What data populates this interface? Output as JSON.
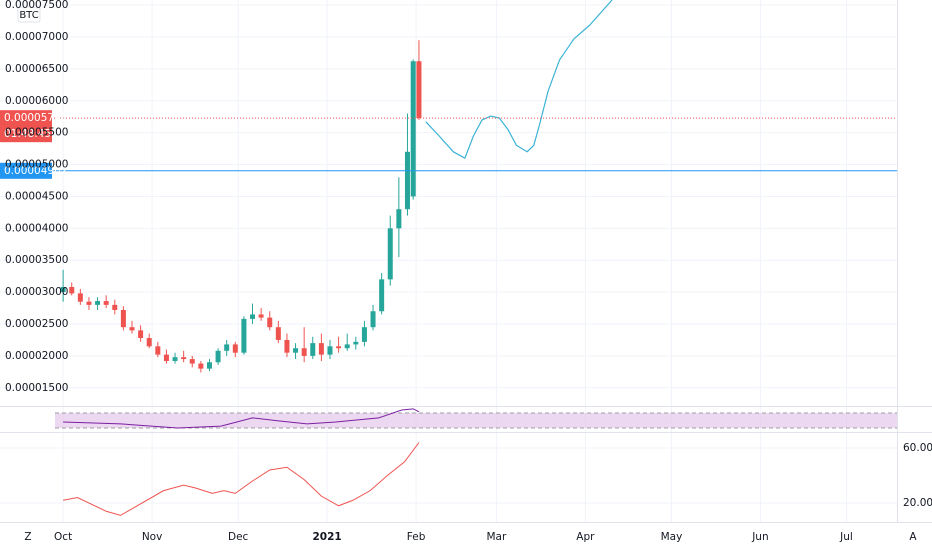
{
  "ui": {
    "symbol": "BTC",
    "left_button": "Z",
    "right_button": "A"
  },
  "chart_data": [
    {
      "type": "candlestick",
      "up_color": "#26a69a",
      "down_color": "#ef5350",
      "x": [
        0,
        3,
        6,
        9,
        12,
        15,
        18,
        21,
        24,
        27,
        30,
        33,
        36,
        39,
        42,
        45,
        48,
        51,
        54,
        57,
        60,
        63,
        66,
        69,
        72,
        75,
        78,
        81,
        84,
        87,
        90,
        93,
        96,
        99,
        102,
        105,
        108,
        111,
        114,
        117,
        120,
        122,
        124
      ],
      "open": [
        3e-05,
        3.08e-05,
        2.98e-05,
        2.85e-05,
        2.8e-05,
        2.86e-05,
        2.8e-05,
        2.72e-05,
        2.45e-05,
        2.4e-05,
        2.28e-05,
        2.15e-05,
        2.02e-05,
        1.92e-05,
        1.98e-05,
        1.95e-05,
        1.88e-05,
        1.8e-05,
        1.9e-05,
        2.08e-05,
        2.18e-05,
        2.05e-05,
        2.58e-05,
        2.65e-05,
        2.6e-05,
        2.45e-05,
        2.25e-05,
        2.05e-05,
        2.12e-05,
        2e-05,
        2.2e-05,
        2.02e-05,
        2.15e-05,
        2.12e-05,
        2.18e-05,
        2.22e-05,
        2.45e-05,
        2.7e-05,
        3.2e-05,
        4e-05,
        4.3e-05,
        4.5e-05,
        6.62e-05
      ],
      "high": [
        3.35e-05,
        3.15e-05,
        3.05e-05,
        2.92e-05,
        2.92e-05,
        2.95e-05,
        2.88e-05,
        2.78e-05,
        2.55e-05,
        2.48e-05,
        2.35e-05,
        2.22e-05,
        2.1e-05,
        2.05e-05,
        2.08e-05,
        2e-05,
        1.92e-05,
        1.95e-05,
        2.12e-05,
        2.25e-05,
        2.22e-05,
        2.62e-05,
        2.82e-05,
        2.75e-05,
        2.7e-05,
        2.55e-05,
        2.35e-05,
        2.2e-05,
        2.45e-05,
        2.3e-05,
        2.35e-05,
        2.25e-05,
        2.3e-05,
        2.35e-05,
        2.3e-05,
        2.55e-05,
        2.8e-05,
        3.3e-05,
        4.2e-05,
        4.8e-05,
        5.8e-05,
        6.65e-05,
        6.95e-05
      ],
      "low": [
        2.85e-05,
        2.95e-05,
        2.8e-05,
        2.72e-05,
        2.72e-05,
        2.75e-05,
        2.65e-05,
        2.4e-05,
        2.35e-05,
        2.22e-05,
        2.12e-05,
        1.98e-05,
        1.88e-05,
        1.88e-05,
        1.9e-05,
        1.82e-05,
        1.74e-05,
        1.76e-05,
        1.86e-05,
        2e-05,
        1.98e-05,
        2.02e-05,
        2.5e-05,
        2.55e-05,
        2.4e-05,
        2.2e-05,
        1.98e-05,
        1.95e-05,
        1.9e-05,
        1.95e-05,
        1.92e-05,
        1.95e-05,
        2.05e-05,
        2.08e-05,
        2.1e-05,
        2.15e-05,
        2.4e-05,
        2.65e-05,
        3.1e-05,
        3.55e-05,
        4.2e-05,
        4.45e-05,
        5.7e-05
      ],
      "close": [
        3.08e-05,
        2.98e-05,
        2.85e-05,
        2.8e-05,
        2.86e-05,
        2.8e-05,
        2.72e-05,
        2.45e-05,
        2.4e-05,
        2.28e-05,
        2.15e-05,
        2.02e-05,
        1.92e-05,
        1.98e-05,
        1.95e-05,
        1.88e-05,
        1.8e-05,
        1.9e-05,
        2.08e-05,
        2.18e-05,
        2.05e-05,
        2.58e-05,
        2.65e-05,
        2.6e-05,
        2.45e-05,
        2.25e-05,
        2.05e-05,
        2.12e-05,
        2e-05,
        2.2e-05,
        2.02e-05,
        2.15e-05,
        2.12e-05,
        2.18e-05,
        2.22e-05,
        2.45e-05,
        2.7e-05,
        3.2e-05,
        4e-05,
        4.3e-05,
        5.2e-05,
        6.62e-05,
        5.73e-05
      ],
      "xlim": [
        -22,
        290.6
      ],
      "ylim": [
        1.23e-05,
        7.58e-05
      ],
      "yticks": [
        {
          "value": 1.5e-05,
          "label": "0.00001500"
        },
        {
          "value": 2e-05,
          "label": "0.00002000"
        },
        {
          "value": 2.5e-05,
          "label": "0.00002500"
        },
        {
          "value": 3e-05,
          "label": "0.00003000"
        },
        {
          "value": 3.5e-05,
          "label": "0.00003500"
        },
        {
          "value": 4e-05,
          "label": "0.00004000"
        },
        {
          "value": 4.5e-05,
          "label": "0.00004500"
        },
        {
          "value": 5e-05,
          "label": "0.00005000"
        },
        {
          "value": 5.5e-05,
          "label": "0.00005500"
        },
        {
          "value": 6e-05,
          "label": "0.00006000"
        },
        {
          "value": 6.5e-05,
          "label": "0.00006500"
        },
        {
          "value": 7e-05,
          "label": "0.00007000"
        },
        {
          "value": 7.5e-05,
          "label": "0.00007500"
        }
      ],
      "xticks": [
        {
          "value": 0,
          "label": "Oct"
        },
        {
          "value": 31,
          "label": "Nov"
        },
        {
          "value": 61,
          "label": "Dec"
        },
        {
          "value": 92,
          "label": "2021"
        },
        {
          "value": 123,
          "label": "Feb"
        },
        {
          "value": 151,
          "label": "Mar"
        },
        {
          "value": 182,
          "label": "Apr"
        },
        {
          "value": 212,
          "label": "May"
        },
        {
          "value": 243,
          "label": "Jun"
        },
        {
          "value": 273,
          "label": "Jul"
        }
      ],
      "grid": true,
      "last_price": {
        "value": 5.727e-05,
        "label": "0.00005727",
        "color": "#ef5350",
        "countdown": "01:48:45"
      },
      "horizontal_line": {
        "value": 4.902e-05,
        "label": "0.00004902",
        "color": "#2196f3"
      },
      "drawing": {
        "color": "#3bb3d6",
        "x": [
          126.4,
          131,
          136,
          140,
          143,
          146,
          149,
          152,
          155,
          158,
          161.7,
          164,
          166,
          169,
          173,
          178,
          183.6,
          191.3
        ],
        "values": [
          5.67e-05,
          5.45e-05,
          5.2e-05,
          5.1e-05,
          5.45e-05,
          5.7e-05,
          5.76e-05,
          5.73e-05,
          5.55e-05,
          5.3e-05,
          5.2e-05,
          5.3e-05,
          5.62e-05,
          6.15e-05,
          6.64e-05,
          6.97e-05,
          7.19e-05,
          7.58e-05
        ]
      }
    },
    {
      "type": "line",
      "color": "#7b1fa2",
      "band": [
        30,
        70
      ],
      "band_color": "#e1bee7",
      "x": [
        0,
        20,
        40,
        55,
        66,
        75,
        85,
        95,
        110,
        118,
        122,
        124
      ],
      "values": [
        46,
        41,
        30,
        35,
        57,
        49,
        41,
        46,
        57,
        78,
        81,
        73
      ],
      "ylim": [
        19.3,
        83.3
      ]
    },
    {
      "type": "line",
      "color": "#ef5350",
      "x": [
        0,
        5,
        15,
        20,
        35,
        42,
        46,
        52,
        56,
        60,
        66,
        72,
        78,
        84,
        90,
        96,
        101,
        107,
        113,
        119,
        124
      ],
      "values": [
        22,
        24,
        14,
        11,
        29,
        33,
        31,
        27,
        29,
        27,
        36,
        44,
        46,
        37,
        25,
        18,
        22,
        29,
        40,
        50,
        64
      ],
      "ylim": [
        6.2,
        70.9
      ],
      "yticks": [
        {
          "value": 20,
          "label": "20.00"
        },
        {
          "value": 60,
          "label": "60.00"
        }
      ]
    }
  ]
}
